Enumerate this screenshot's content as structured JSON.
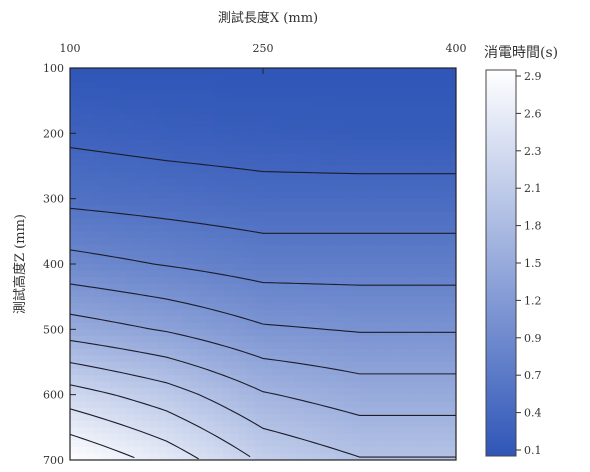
{
  "chart_data": {
    "type": "heatmap",
    "subtype": "contour",
    "title": "",
    "xlabel": "測試長度X (mm)",
    "ylabel": "測試高度Z (mm)",
    "x_axis_position": "top",
    "y_axis_inverted": true,
    "xlim": [
      100,
      400
    ],
    "ylim": [
      100,
      700
    ],
    "x_ticks": [
      100,
      250,
      400
    ],
    "y_ticks": [
      100,
      200,
      300,
      400,
      500,
      600,
      700
    ],
    "colorbar": {
      "title": "消電時間(s)",
      "range": [
        0.1,
        2.9
      ],
      "ticks": [
        2.9,
        2.6,
        2.3,
        2.1,
        1.8,
        1.5,
        1.2,
        0.9,
        0.7,
        0.4,
        0.1
      ],
      "low_color": "#2f56b8",
      "high_color": "#ffffff"
    },
    "field": {
      "x": [
        100,
        175,
        250,
        325,
        400
      ],
      "z": [
        100,
        200,
        300,
        400,
        500,
        600,
        700
      ],
      "values": [
        [
          0.1,
          0.1,
          0.1,
          0.1,
          0.1
        ],
        [
          0.3,
          0.25,
          0.22,
          0.2,
          0.2
        ],
        [
          0.55,
          0.5,
          0.45,
          0.45,
          0.45
        ],
        [
          0.95,
          0.85,
          0.75,
          0.75,
          0.75
        ],
        [
          1.5,
          1.35,
          1.15,
          1.1,
          1.1
        ],
        [
          2.25,
          2.0,
          1.65,
          1.5,
          1.5
        ],
        [
          2.9,
          2.55,
          2.1,
          1.9,
          1.9
        ]
      ]
    }
  }
}
